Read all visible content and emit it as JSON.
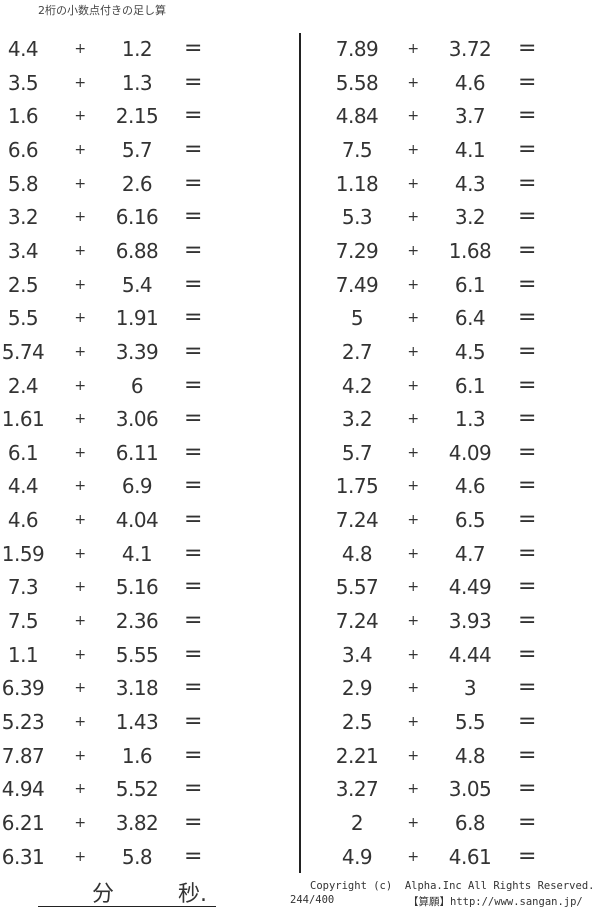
{
  "title": "2桁の小数点付きの足し算",
  "operator": "+",
  "equals": "=",
  "left_problems": [
    [
      "4.4",
      "1.2"
    ],
    [
      "3.5",
      "1.3"
    ],
    [
      "1.6",
      "2.15"
    ],
    [
      "6.6",
      "5.7"
    ],
    [
      "5.8",
      "2.6"
    ],
    [
      "3.2",
      "6.16"
    ],
    [
      "3.4",
      "6.88"
    ],
    [
      "2.5",
      "5.4"
    ],
    [
      "5.5",
      "1.91"
    ],
    [
      "5.74",
      "3.39"
    ],
    [
      "2.4",
      "6"
    ],
    [
      "1.61",
      "3.06"
    ],
    [
      "6.1",
      "6.11"
    ],
    [
      "4.4",
      "6.9"
    ],
    [
      "4.6",
      "4.04"
    ],
    [
      "1.59",
      "4.1"
    ],
    [
      "7.3",
      "5.16"
    ],
    [
      "7.5",
      "2.36"
    ],
    [
      "1.1",
      "5.55"
    ],
    [
      "6.39",
      "3.18"
    ],
    [
      "5.23",
      "1.43"
    ],
    [
      "7.87",
      "1.6"
    ],
    [
      "4.94",
      "5.52"
    ],
    [
      "6.21",
      "3.82"
    ],
    [
      "6.31",
      "5.8"
    ]
  ],
  "right_problems": [
    [
      "7.89",
      "3.72"
    ],
    [
      "5.58",
      "4.6"
    ],
    [
      "4.84",
      "3.7"
    ],
    [
      "7.5",
      "4.1"
    ],
    [
      "1.18",
      "4.3"
    ],
    [
      "5.3",
      "3.2"
    ],
    [
      "7.29",
      "1.68"
    ],
    [
      "7.49",
      "6.1"
    ],
    [
      "5",
      "6.4"
    ],
    [
      "2.7",
      "4.5"
    ],
    [
      "4.2",
      "6.1"
    ],
    [
      "3.2",
      "1.3"
    ],
    [
      "5.7",
      "4.09"
    ],
    [
      "1.75",
      "4.6"
    ],
    [
      "7.24",
      "6.5"
    ],
    [
      "4.8",
      "4.7"
    ],
    [
      "5.57",
      "4.49"
    ],
    [
      "7.24",
      "3.93"
    ],
    [
      "3.4",
      "4.44"
    ],
    [
      "2.9",
      "3"
    ],
    [
      "2.5",
      "5.5"
    ],
    [
      "2.21",
      "4.8"
    ],
    [
      "3.27",
      "3.05"
    ],
    [
      "2",
      "6.8"
    ],
    [
      "4.9",
      "4.61"
    ]
  ],
  "footer": {
    "minutes_label": "分",
    "seconds_label": "秒.",
    "copyright": "Copyright (c)  Alpha.Inc All Rights Reserved.",
    "page_number": "244/400",
    "site": "【算願】http://www.sangan.jp/"
  }
}
